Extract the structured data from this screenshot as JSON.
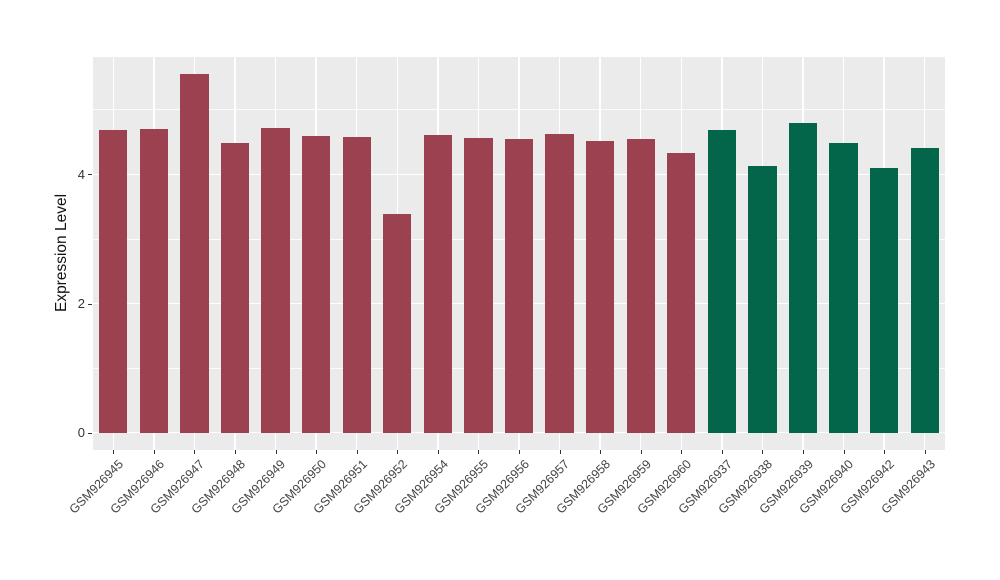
{
  "figure": {
    "background": "#FFFFFF"
  },
  "chart_data": {
    "type": "bar",
    "title": "",
    "xlabel": "",
    "ylabel": "Expression Level",
    "y_ticks": [
      0,
      2,
      4
    ],
    "y_minor_gridlines": [
      1,
      3,
      5
    ],
    "ylim": [
      -0.28,
      5.82
    ],
    "grid": "on",
    "legend": "none",
    "panel_background": "#EBEBEB",
    "gridline_color": "#FFFFFF",
    "axis_text_color": "#333333",
    "bar_groups": {
      "maroon": "#9C4150",
      "green": "#03664A"
    },
    "bars": [
      {
        "label": "GSM926945",
        "value": 4.68,
        "group": "maroon"
      },
      {
        "label": "GSM926946",
        "value": 4.7,
        "group": "maroon"
      },
      {
        "label": "GSM926947",
        "value": 5.55,
        "group": "maroon"
      },
      {
        "label": "GSM926948",
        "value": 4.49,
        "group": "maroon"
      },
      {
        "label": "GSM926949",
        "value": 4.71,
        "group": "maroon"
      },
      {
        "label": "GSM926950",
        "value": 4.59,
        "group": "maroon"
      },
      {
        "label": "GSM926951",
        "value": 4.57,
        "group": "maroon"
      },
      {
        "label": "GSM926952",
        "value": 3.39,
        "group": "maroon"
      },
      {
        "label": "GSM926954",
        "value": 4.61,
        "group": "maroon"
      },
      {
        "label": "GSM926955",
        "value": 4.56,
        "group": "maroon"
      },
      {
        "label": "GSM926956",
        "value": 4.55,
        "group": "maroon"
      },
      {
        "label": "GSM926957",
        "value": 4.62,
        "group": "maroon"
      },
      {
        "label": "GSM926958",
        "value": 4.52,
        "group": "maroon"
      },
      {
        "label": "GSM926959",
        "value": 4.55,
        "group": "maroon"
      },
      {
        "label": "GSM926960",
        "value": 4.33,
        "group": "maroon"
      },
      {
        "label": "GSM926937",
        "value": 4.68,
        "group": "green"
      },
      {
        "label": "GSM926938",
        "value": 4.13,
        "group": "green"
      },
      {
        "label": "GSM926939",
        "value": 4.8,
        "group": "green"
      },
      {
        "label": "GSM926940",
        "value": 4.48,
        "group": "green"
      },
      {
        "label": "GSM926942",
        "value": 4.1,
        "group": "green"
      },
      {
        "label": "GSM926943",
        "value": 4.4,
        "group": "green"
      }
    ]
  }
}
